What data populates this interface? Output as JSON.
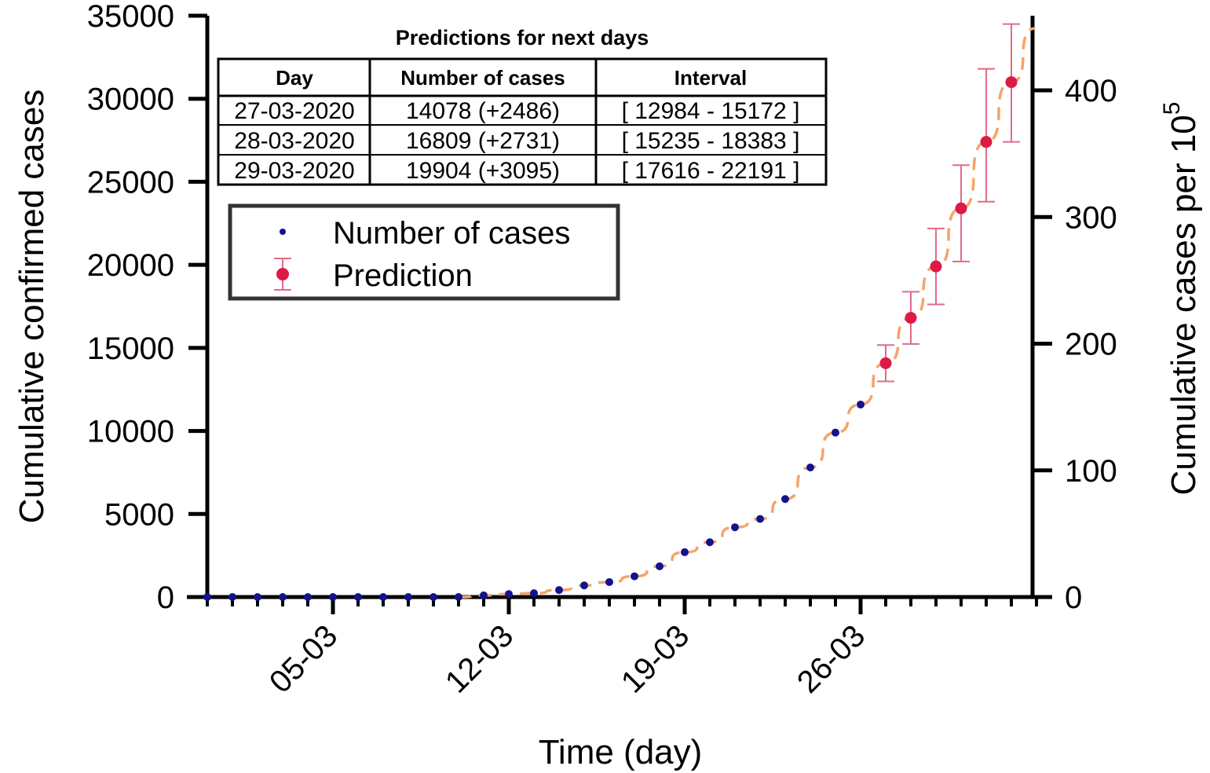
{
  "chart_data": {
    "type": "scatter",
    "xlabel": "Time (day)",
    "ylabel": "Cumulative confirmed cases",
    "y2label_main": "Cumulative cases per 10",
    "y2label_sup": "5",
    "xticks": [
      "05-03",
      "12-03",
      "19-03",
      "26-03"
    ],
    "yticks": [
      "0",
      "5000",
      "10000",
      "15000",
      "20000",
      "25000",
      "30000",
      "35000"
    ],
    "y2ticks": [
      "0",
      "100",
      "200",
      "300",
      "400"
    ],
    "ylim": [
      0,
      35000
    ],
    "y2lim": [
      0,
      400
    ],
    "legend": {
      "placement": "upper-left",
      "entries": [
        "Number of cases",
        "Prediction"
      ]
    },
    "colors": {
      "observed": "#13138c",
      "prediction": "#dc1a44",
      "fit": "#f4a46a",
      "errorbar": "#e06b86"
    },
    "series": [
      {
        "name": "Number of cases",
        "kind": "observed",
        "days": [
          "29-02",
          "01-03",
          "02-03",
          "03-03",
          "04-03",
          "05-03",
          "06-03",
          "07-03",
          "08-03",
          "09-03",
          "10-03",
          "11-03",
          "12-03",
          "13-03",
          "14-03",
          "15-03",
          "16-03",
          "17-03",
          "18-03",
          "19-03",
          "20-03",
          "21-03",
          "22-03",
          "23-03",
          "24-03",
          "25-03",
          "26-03"
        ],
        "values": [
          0,
          0,
          0,
          0,
          0,
          0,
          0,
          0,
          0,
          0,
          0,
          100,
          180,
          230,
          420,
          700,
          900,
          1250,
          1850,
          2700,
          3300,
          4200,
          4700,
          5900,
          7800,
          9900,
          11590
        ]
      },
      {
        "name": "Prediction",
        "kind": "prediction",
        "days": [
          "27-03",
          "28-03",
          "29-03",
          "30-03",
          "31-03",
          "01-04"
        ],
        "values": [
          14078,
          16809,
          19904,
          23400,
          27400,
          31000
        ],
        "lower": [
          12984,
          15235,
          17616,
          20200,
          23800,
          27400
        ],
        "upper": [
          15172,
          18383,
          22191,
          26000,
          31800,
          34500
        ]
      }
    ],
    "table": {
      "title": "Predictions for next days",
      "headers": [
        "Day",
        "Number of cases",
        "Interval"
      ],
      "rows": [
        [
          "27-03-2020",
          "14078 (+2486)",
          "[ 12984 - 15172 ]"
        ],
        [
          "28-03-2020",
          "16809 (+2731)",
          "[ 15235 - 18383 ]"
        ],
        [
          "29-03-2020",
          "19904 (+3095)",
          "[ 17616 - 22191 ]"
        ]
      ]
    }
  }
}
